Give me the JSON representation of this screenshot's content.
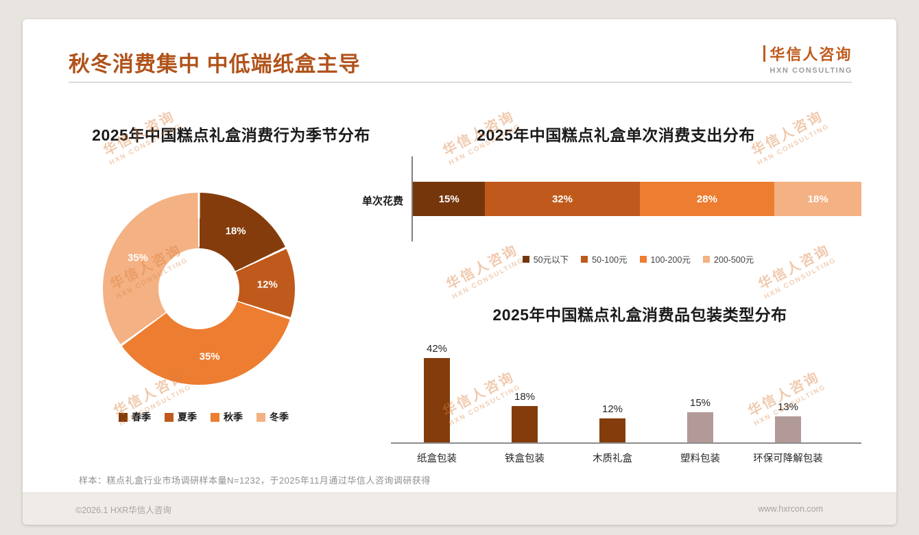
{
  "page": {
    "title": "秋冬消费集中 中低端纸盒主导",
    "accent_color": "#B0531B",
    "logo": {
      "name": "华信人咨询",
      "sub": "HXN CONSULTING"
    },
    "watermark": {
      "line1": "华信人咨询",
      "line2": "HXN CONSULTING"
    },
    "note": "样本：糕点礼盒行业市场调研样本量N=1232，于2025年11月通过华信人咨询调研获得",
    "footer": {
      "left": "©2026.1 HXR华信人咨询",
      "right": "www.hxrcon.com"
    }
  },
  "chart_data": [
    {
      "type": "pie",
      "subtype": "donut",
      "title": "2025年中国糕点礼盒消费行为季节分布",
      "categories": [
        "春季",
        "夏季",
        "秋季",
        "冬季"
      ],
      "values": [
        18,
        12,
        35,
        35
      ],
      "labels": [
        "18%",
        "12%",
        "35%",
        "35%"
      ],
      "colors": [
        "#843C0C",
        "#C05A1C",
        "#ED7D31",
        "#F4B183"
      ],
      "legend_position": "bottom"
    },
    {
      "type": "bar",
      "subtype": "stacked-horizontal",
      "title": "2025年中国糕点礼盒单次消费支出分布",
      "row_label": "单次花费",
      "categories": [
        "50元以下",
        "50-100元",
        "100-200元",
        "200-500元"
      ],
      "values": [
        15,
        32,
        28,
        18
      ],
      "labels": [
        "15%",
        "32%",
        "28%",
        "18%"
      ],
      "colors": [
        "#76360C",
        "#C05A1C",
        "#ED7D31",
        "#F4B183"
      ],
      "legend_position": "bottom"
    },
    {
      "type": "bar",
      "subtype": "column",
      "title": "2025年中国糕点礼盒消费品包装类型分布",
      "categories": [
        "纸盒包装",
        "铁盒包装",
        "木质礼盒",
        "塑料包装",
        "环保可降解包装"
      ],
      "values": [
        42,
        18,
        12,
        15,
        13
      ],
      "labels": [
        "42%",
        "18%",
        "12%",
        "15%",
        "13%"
      ],
      "colors": [
        "#843C0C",
        "#843C0C",
        "#843C0C",
        "#B29A98",
        "#B29A98"
      ],
      "value_unit": "%"
    }
  ]
}
